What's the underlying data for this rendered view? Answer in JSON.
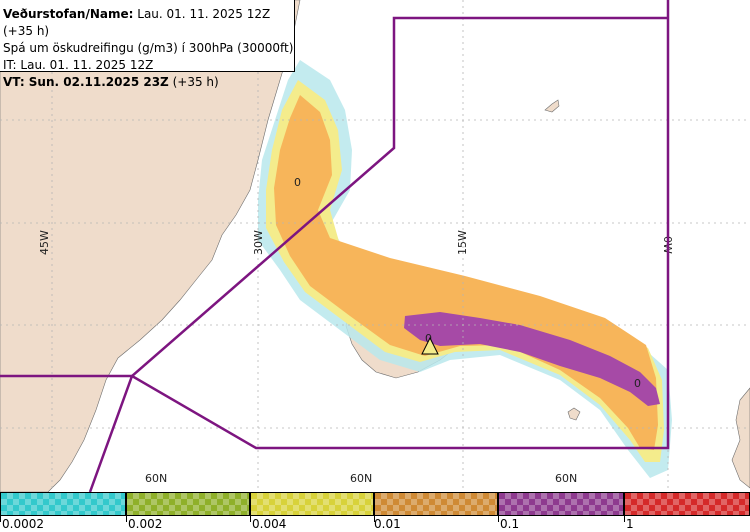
{
  "header": {
    "name_label": "Veðurstofan/Name:",
    "name_value": "Lau. 01. 11. 2025 12Z (+35 h)",
    "line2": "Spá um öskudreifingu (g/m3) í 300hPa (30000ft)",
    "line3": "IT: Lau. 01. 11. 2025 12Z",
    "vt_label": "VT: Sun. 02.11.2025 23Z",
    "vt_value": "(+35 h)"
  },
  "grid": {
    "lon_labels": [
      "45W",
      "30W",
      "15W",
      "0W"
    ],
    "lat_labels": [
      "60N",
      "60N",
      "60N"
    ]
  },
  "markers": {
    "contour_labels": [
      "0",
      "0",
      "0"
    ]
  },
  "legend": {
    "labels": [
      "0.0002",
      "0.002",
      "0.004",
      "0.01",
      "0.1",
      "1"
    ],
    "colors": [
      "#33c9cc",
      "#8fb02a",
      "#d8d23a",
      "#cf8a35",
      "#8e3a8f",
      "#d52a2a"
    ]
  },
  "colors": {
    "land": "#efdccb",
    "boundary": "#7d1580",
    "ash_low": "#b9e7ec",
    "ash_yellow": "#f4ec8c",
    "ash_orange": "#f7b55a",
    "ash_purple": "#a64aa6"
  }
}
